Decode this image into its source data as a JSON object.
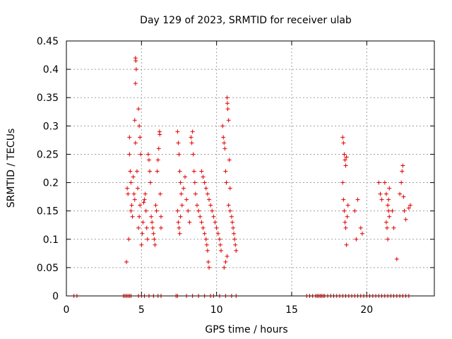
{
  "chart_data": {
    "type": "scatter",
    "title": "Day 129 of 2023, SRMTID for receiver ulab",
    "xlabel": "GPS time / hours",
    "ylabel": "SRMTID / TECUs",
    "xlim": [
      0,
      24.5
    ],
    "ylim": [
      0,
      0.45
    ],
    "xticks": [
      0,
      5,
      10,
      15,
      20
    ],
    "xtick_labels": [
      "0",
      "5",
      "10",
      "15",
      "20"
    ],
    "yticks": [
      0,
      0.05,
      0.1,
      0.15,
      0.2,
      0.25,
      0.3,
      0.35,
      0.4,
      0.45
    ],
    "ytick_labels": [
      "0",
      "0.05",
      "0.1",
      "0.15",
      "0.2",
      "0.25",
      "0.3",
      "0.35",
      "0.4",
      "0.45"
    ],
    "grid": true,
    "marker_color": "#e00000",
    "series": [
      {
        "name": "SRMTID",
        "points": [
          [
            0.5,
            0
          ],
          [
            0.7,
            0
          ],
          [
            3.8,
            0
          ],
          [
            3.9,
            0
          ],
          [
            4.0,
            0
          ],
          [
            4.1,
            0
          ],
          [
            4.2,
            0
          ],
          [
            4.3,
            0
          ],
          [
            4.8,
            0
          ],
          [
            5.0,
            0
          ],
          [
            5.2,
            0
          ],
          [
            5.5,
            0
          ],
          [
            5.8,
            0
          ],
          [
            6.1,
            0
          ],
          [
            6.3,
            0
          ],
          [
            7.3,
            0
          ],
          [
            7.4,
            0
          ],
          [
            8.0,
            0
          ],
          [
            8.4,
            0
          ],
          [
            8.8,
            0
          ],
          [
            9.2,
            0
          ],
          [
            9.6,
            0
          ],
          [
            9.8,
            0
          ],
          [
            10.2,
            0
          ],
          [
            10.6,
            0
          ],
          [
            11.0,
            0
          ],
          [
            11.3,
            0
          ],
          [
            16.0,
            0
          ],
          [
            16.2,
            0
          ],
          [
            16.4,
            0
          ],
          [
            16.6,
            0
          ],
          [
            16.7,
            0
          ],
          [
            16.8,
            0
          ],
          [
            16.9,
            0
          ],
          [
            17.0,
            0
          ],
          [
            17.1,
            0
          ],
          [
            17.2,
            0
          ],
          [
            17.4,
            0
          ],
          [
            17.6,
            0
          ],
          [
            17.8,
            0
          ],
          [
            18.0,
            0
          ],
          [
            18.2,
            0
          ],
          [
            18.4,
            0
          ],
          [
            18.6,
            0
          ],
          [
            18.8,
            0
          ],
          [
            19.0,
            0
          ],
          [
            19.2,
            0
          ],
          [
            19.4,
            0
          ],
          [
            19.6,
            0
          ],
          [
            19.8,
            0
          ],
          [
            20.0,
            0
          ],
          [
            20.2,
            0
          ],
          [
            20.4,
            0
          ],
          [
            20.6,
            0
          ],
          [
            20.8,
            0
          ],
          [
            21.0,
            0
          ],
          [
            21.2,
            0
          ],
          [
            21.4,
            0
          ],
          [
            21.6,
            0
          ],
          [
            21.8,
            0
          ],
          [
            22.0,
            0
          ],
          [
            22.2,
            0
          ],
          [
            22.4,
            0
          ],
          [
            22.6,
            0
          ],
          [
            22.8,
            0
          ],
          [
            4.0,
            0.06
          ],
          [
            4.05,
            0.19
          ],
          [
            4.1,
            0.18
          ],
          [
            4.15,
            0.1
          ],
          [
            4.2,
            0.28
          ],
          [
            4.2,
            0.25
          ],
          [
            4.25,
            0.22
          ],
          [
            4.3,
            0.2
          ],
          [
            4.3,
            0.15
          ],
          [
            4.35,
            0.16
          ],
          [
            4.4,
            0.14
          ],
          [
            4.45,
            0.21
          ],
          [
            4.5,
            0.18
          ],
          [
            4.55,
            0.17
          ],
          [
            4.6,
            0.42
          ],
          [
            4.62,
            0.415
          ],
          [
            4.65,
            0.4
          ],
          [
            4.6,
            0.375
          ],
          [
            4.55,
            0.31
          ],
          [
            4.6,
            0.27
          ],
          [
            4.7,
            0.22
          ],
          [
            4.75,
            0.19
          ],
          [
            4.8,
            0.33
          ],
          [
            4.85,
            0.3
          ],
          [
            4.9,
            0.28
          ],
          [
            4.95,
            0.25
          ],
          [
            4.8,
            0.12
          ],
          [
            4.85,
            0.14
          ],
          [
            4.9,
            0.16
          ],
          [
            5.0,
            0.09
          ],
          [
            5.05,
            0.11
          ],
          [
            5.1,
            0.13
          ],
          [
            5.15,
            0.165
          ],
          [
            5.2,
            0.17
          ],
          [
            5.25,
            0.18
          ],
          [
            5.3,
            0.15
          ],
          [
            5.35,
            0.12
          ],
          [
            5.4,
            0.1
          ],
          [
            5.45,
            0.25
          ],
          [
            5.5,
            0.24
          ],
          [
            5.55,
            0.22
          ],
          [
            5.6,
            0.2
          ],
          [
            5.65,
            0.14
          ],
          [
            5.7,
            0.13
          ],
          [
            5.75,
            0.12
          ],
          [
            5.8,
            0.11
          ],
          [
            5.85,
            0.1
          ],
          [
            5.9,
            0.09
          ],
          [
            5.95,
            0.16
          ],
          [
            6.0,
            0.15
          ],
          [
            6.05,
            0.22
          ],
          [
            6.1,
            0.24
          ],
          [
            6.15,
            0.26
          ],
          [
            6.2,
            0.29
          ],
          [
            6.22,
            0.285
          ],
          [
            6.25,
            0.18
          ],
          [
            6.3,
            0.14
          ],
          [
            6.3,
            0.12
          ],
          [
            7.4,
            0.29
          ],
          [
            7.45,
            0.27
          ],
          [
            7.5,
            0.25
          ],
          [
            7.55,
            0.22
          ],
          [
            7.6,
            0.2
          ],
          [
            7.65,
            0.18
          ],
          [
            7.4,
            0.15
          ],
          [
            7.45,
            0.13
          ],
          [
            7.5,
            0.12
          ],
          [
            7.55,
            0.11
          ],
          [
            7.6,
            0.14
          ],
          [
            7.7,
            0.16
          ],
          [
            7.8,
            0.19
          ],
          [
            7.9,
            0.21
          ],
          [
            8.0,
            0.17
          ],
          [
            8.1,
            0.15
          ],
          [
            8.2,
            0.13
          ],
          [
            8.3,
            0.28
          ],
          [
            8.35,
            0.27
          ],
          [
            8.4,
            0.29
          ],
          [
            8.45,
            0.25
          ],
          [
            8.5,
            0.22
          ],
          [
            8.55,
            0.2
          ],
          [
            8.6,
            0.18
          ],
          [
            8.7,
            0.16
          ],
          [
            8.8,
            0.15
          ],
          [
            8.9,
            0.14
          ],
          [
            9.0,
            0.13
          ],
          [
            9.1,
            0.12
          ],
          [
            9.2,
            0.11
          ],
          [
            9.3,
            0.1
          ],
          [
            9.35,
            0.09
          ],
          [
            9.4,
            0.08
          ],
          [
            9.45,
            0.06
          ],
          [
            9.5,
            0.05
          ],
          [
            9.0,
            0.22
          ],
          [
            9.1,
            0.21
          ],
          [
            9.2,
            0.2
          ],
          [
            9.3,
            0.19
          ],
          [
            9.4,
            0.18
          ],
          [
            9.5,
            0.17
          ],
          [
            9.6,
            0.16
          ],
          [
            9.7,
            0.15
          ],
          [
            9.8,
            0.14
          ],
          [
            9.9,
            0.13
          ],
          [
            10.0,
            0.12
          ],
          [
            10.1,
            0.11
          ],
          [
            10.2,
            0.1
          ],
          [
            10.25,
            0.09
          ],
          [
            10.3,
            0.08
          ],
          [
            10.4,
            0.3
          ],
          [
            10.45,
            0.28
          ],
          [
            10.5,
            0.27
          ],
          [
            10.55,
            0.26
          ],
          [
            10.6,
            0.22
          ],
          [
            10.65,
            0.2
          ],
          [
            10.7,
            0.35
          ],
          [
            10.72,
            0.34
          ],
          [
            10.75,
            0.33
          ],
          [
            10.8,
            0.31
          ],
          [
            10.85,
            0.24
          ],
          [
            10.9,
            0.19
          ],
          [
            10.5,
            0.05
          ],
          [
            10.6,
            0.06
          ],
          [
            10.7,
            0.07
          ],
          [
            10.8,
            0.16
          ],
          [
            10.9,
            0.15
          ],
          [
            11.0,
            0.14
          ],
          [
            11.05,
            0.13
          ],
          [
            11.1,
            0.12
          ],
          [
            11.15,
            0.11
          ],
          [
            11.2,
            0.1
          ],
          [
            11.25,
            0.09
          ],
          [
            11.3,
            0.08
          ],
          [
            18.4,
            0.28
          ],
          [
            18.45,
            0.27
          ],
          [
            18.5,
            0.25
          ],
          [
            18.55,
            0.24
          ],
          [
            18.6,
            0.23
          ],
          [
            18.65,
            0.245
          ],
          [
            18.4,
            0.2
          ],
          [
            18.45,
            0.17
          ],
          [
            18.5,
            0.15
          ],
          [
            18.55,
            0.13
          ],
          [
            18.6,
            0.12
          ],
          [
            18.65,
            0.09
          ],
          [
            18.7,
            0.14
          ],
          [
            18.75,
            0.16
          ],
          [
            19.2,
            0.15
          ],
          [
            19.3,
            0.1
          ],
          [
            19.4,
            0.17
          ],
          [
            19.6,
            0.12
          ],
          [
            19.7,
            0.11
          ],
          [
            20.8,
            0.2
          ],
          [
            20.9,
            0.18
          ],
          [
            21.0,
            0.17
          ],
          [
            21.2,
            0.2
          ],
          [
            21.3,
            0.18
          ],
          [
            21.4,
            0.16
          ],
          [
            21.45,
            0.15
          ],
          [
            21.5,
            0.14
          ],
          [
            21.3,
            0.13
          ],
          [
            21.35,
            0.12
          ],
          [
            21.4,
            0.1
          ],
          [
            21.45,
            0.17
          ],
          [
            21.5,
            0.19
          ],
          [
            21.7,
            0.15
          ],
          [
            21.8,
            0.12
          ],
          [
            22.0,
            0.065
          ],
          [
            22.2,
            0.18
          ],
          [
            22.3,
            0.2
          ],
          [
            22.35,
            0.22
          ],
          [
            22.4,
            0.23
          ],
          [
            22.45,
            0.175
          ],
          [
            22.5,
            0.15
          ],
          [
            22.6,
            0.135
          ],
          [
            22.8,
            0.155
          ],
          [
            22.9,
            0.16
          ]
        ]
      }
    ]
  }
}
